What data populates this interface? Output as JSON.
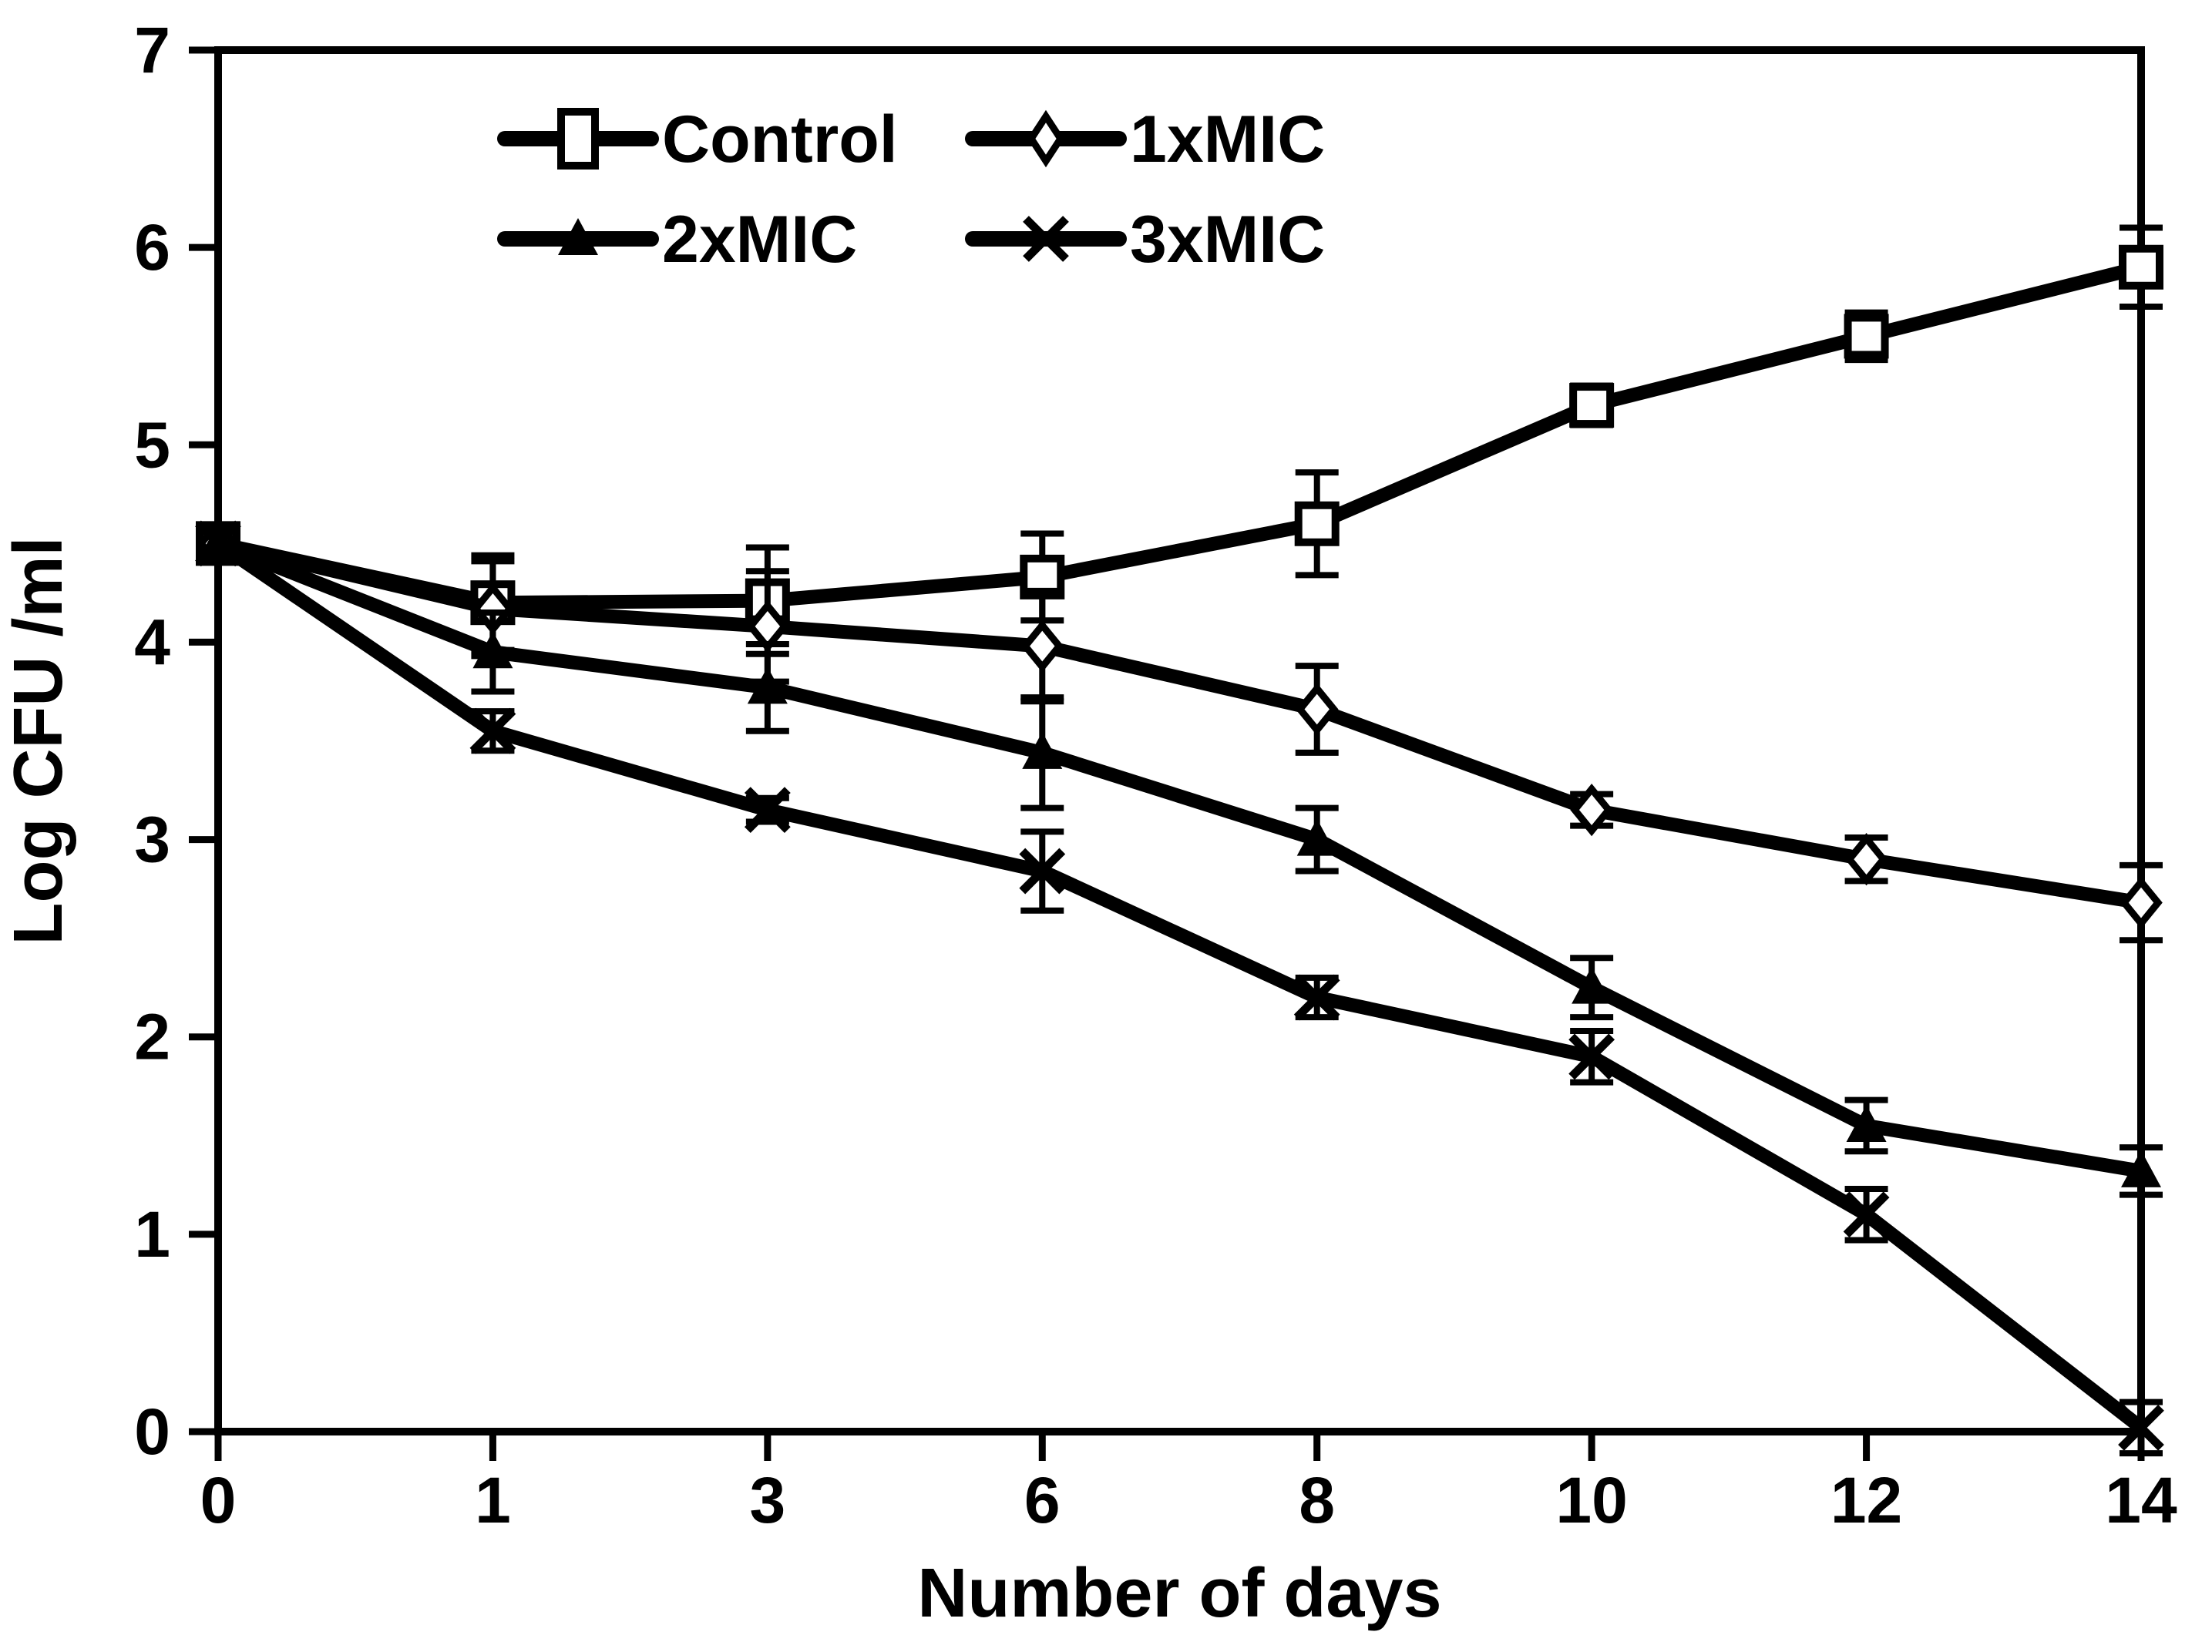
{
  "figure": {
    "background": "#ffffff",
    "ink_color": "#000000"
  },
  "chart_data": {
    "type": "line",
    "title": "",
    "xlabel": "Number of days",
    "ylabel": "Log CFU /ml",
    "x_axis_type": "category",
    "categories": [
      "0",
      "1",
      "3",
      "6",
      "8",
      "10",
      "12",
      "14"
    ],
    "y_ticks": [
      0,
      1,
      2,
      3,
      4,
      5,
      6,
      7
    ],
    "ylim": [
      0,
      7
    ],
    "grid": false,
    "legend_position": "top-inside-two-columns",
    "error_bars": true,
    "series": [
      {
        "name": "Control",
        "marker": "open-square",
        "values": [
          4.5,
          4.2,
          4.21,
          4.33,
          4.6,
          5.2,
          5.55,
          5.9
        ],
        "errors": [
          0.08,
          0.24,
          0.27,
          0.22,
          0.26,
          0.1,
          0.12,
          0.2
        ]
      },
      {
        "name": "1xMIC",
        "marker": "open-diamond",
        "values": [
          4.5,
          4.17,
          4.08,
          3.98,
          3.66,
          3.15,
          2.9,
          2.68
        ],
        "errors": [
          0.08,
          0.24,
          0.28,
          0.28,
          0.22,
          0.08,
          0.11,
          0.19
        ]
      },
      {
        "name": "2xMIC",
        "marker": "filled-triangle",
        "values": [
          4.5,
          3.95,
          3.77,
          3.44,
          3.0,
          2.25,
          1.55,
          1.32
        ],
        "errors": [
          0.08,
          0.2,
          0.22,
          0.28,
          0.16,
          0.15,
          0.13,
          0.12
        ]
      },
      {
        "name": "3xMIC",
        "marker": "x-cross",
        "values": [
          4.5,
          3.55,
          3.15,
          2.84,
          2.2,
          1.9,
          1.1,
          0.02
        ],
        "errors": [
          0.08,
          0.1,
          0.06,
          0.2,
          0.1,
          0.13,
          0.13,
          0.13
        ]
      }
    ],
    "legend_layout": [
      [
        "Control",
        "1xMIC"
      ],
      [
        "2xMIC",
        "3xMIC"
      ]
    ]
  }
}
